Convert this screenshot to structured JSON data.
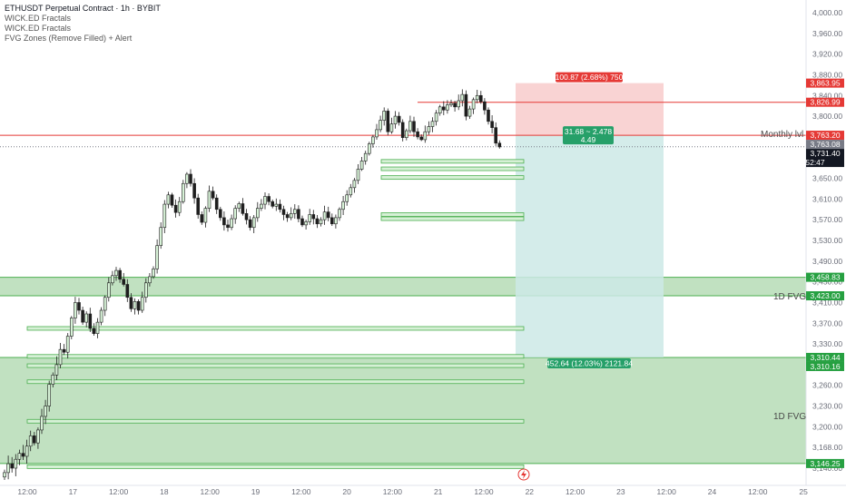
{
  "header": {
    "title": "ETHUSDT Perpetual Contract · 1h · BYBIT",
    "indicators": [
      "WICK.ED Fractals",
      "WICK.ED Fractals",
      "FVG Zones (Remove Filled) + Alert"
    ]
  },
  "colors": {
    "up": "#26a69a",
    "down": "#ef5350",
    "candle_body": "#1e1e1e",
    "fvg_fill": "#b6dcb6",
    "fvg_line": "#4caf50",
    "target": "#cce9e6",
    "stop": "#f9d3d3",
    "line_red": "#e53935"
  },
  "annotations": {
    "monthly_lvl": "Monthly lvl",
    "fvg_top": "1D FVG",
    "fvg_bottom": "1D FVG",
    "risk_box": "100.87 (2.68%) 750",
    "rr_line1": "31.68 ~ 2.478",
    "rr_line2": "4.49",
    "target_box": "452.64 (12.03%) 2121.84"
  },
  "price_tags": [
    {
      "label": "3,863.95",
      "value": 3863.95,
      "color": "#e53935"
    },
    {
      "label": "3,826.99",
      "value": 3826.99,
      "color": "#e53935"
    },
    {
      "label": "3,763.20",
      "value": 3763.2,
      "color": "#e53935"
    },
    {
      "label": "3,763.08",
      "value": 3763.08,
      "color": "#787b86"
    },
    {
      "label": "3,731.40",
      "value": 3731.4,
      "color": "#131722",
      "sub": "52:47"
    },
    {
      "label": "3,458.83",
      "value": 3458.83,
      "color": "#26a041"
    },
    {
      "label": "3,423.00",
      "value": 3423.0,
      "color": "#26a041"
    },
    {
      "label": "3,310.44",
      "value": 3310.44,
      "color": "#26a041"
    },
    {
      "label": "3,310.16",
      "value": 3310.16,
      "color": "#26a041"
    },
    {
      "label": "3,146.25",
      "value": 3146.25,
      "color": "#26a041"
    }
  ],
  "chart_data": {
    "type": "candlestick",
    "y_ticks": [
      "4,000.00",
      "3,960.00",
      "3,920.00",
      "3,880.00",
      "3,840.00",
      "3,800.00",
      "3,760.00",
      "3,700.00",
      "3,650.00",
      "3,610.00",
      "3,570.00",
      "3,530.00",
      "3,490.00",
      "3,450.00",
      "3,410.00",
      "3,370.00",
      "3,330.00",
      "3,300.00",
      "3,260.00",
      "3,230.00",
      "3,200.00",
      "3,168.00",
      "3,140.00"
    ],
    "y_tick_values": [
      4000,
      3960,
      3920,
      3880,
      3840,
      3800,
      3760,
      3700,
      3650,
      3610,
      3570,
      3530,
      3490,
      3450,
      3410,
      3370,
      3330,
      3300,
      3260,
      3230,
      3200,
      3168,
      3140
    ],
    "x_ticks": [
      "12:00",
      "17",
      "12:00",
      "18",
      "12:00",
      "19",
      "12:00",
      "20",
      "12:00",
      "21",
      "12:00",
      "22",
      "12:00",
      "23",
      "12:00",
      "24",
      "12:00",
      "25"
    ],
    "fvg_zones": [
      {
        "from": 3423.0,
        "to": 3458.83,
        "label_key": "fvg_top"
      },
      {
        "from": 3146.25,
        "to": 3310.44,
        "label_key": "fvg_bottom"
      }
    ],
    "minor_fvgs": [
      3691,
      3673,
      3652,
      3580,
      3572,
      3360,
      3312,
      3298,
      3267,
      3208,
      3142
    ],
    "levels": [
      {
        "value": 3826.99,
        "color": "#e53935"
      },
      {
        "value": 3763.2,
        "color": "#e53935"
      },
      {
        "value": 3731.4,
        "color": "#787b86",
        "dotted": true
      }
    ],
    "position": {
      "entry": 3763.08,
      "stop": 3863.95,
      "target": 3310.44
    },
    "closes": [
      3134,
      3146,
      3140,
      3152,
      3160,
      3156,
      3170,
      3186,
      3175,
      3195,
      3215,
      3230,
      3262,
      3280,
      3300,
      3322,
      3318,
      3345,
      3380,
      3410,
      3395,
      3372,
      3388,
      3360,
      3350,
      3372,
      3395,
      3420,
      3448,
      3462,
      3472,
      3455,
      3445,
      3420,
      3398,
      3412,
      3395,
      3420,
      3448,
      3460,
      3475,
      3520,
      3555,
      3600,
      3618,
      3598,
      3584,
      3605,
      3640,
      3660,
      3640,
      3612,
      3580,
      3565,
      3592,
      3625,
      3612,
      3590,
      3574,
      3560,
      3555,
      3572,
      3592,
      3601,
      3582,
      3570,
      3555,
      3574,
      3592,
      3600,
      3615,
      3605,
      3596,
      3600,
      3590,
      3580,
      3574,
      3582,
      3590,
      3572,
      3560,
      3566,
      3580,
      3572,
      3562,
      3570,
      3585,
      3574,
      3562,
      3574,
      3590,
      3605,
      3618,
      3632,
      3646,
      3672,
      3692,
      3712,
      3740,
      3760,
      3774,
      3792,
      3810,
      3770,
      3785,
      3800,
      3788,
      3758,
      3772,
      3790,
      3770,
      3760,
      3752,
      3770,
      3780,
      3790,
      3806,
      3818,
      3812,
      3822,
      3825,
      3818,
      3830,
      3842,
      3800,
      3814,
      3832,
      3840,
      3828,
      3812,
      3790,
      3778,
      3742,
      3731
    ],
    "candle_x_start": 5,
    "candle_step": 4.1
  }
}
